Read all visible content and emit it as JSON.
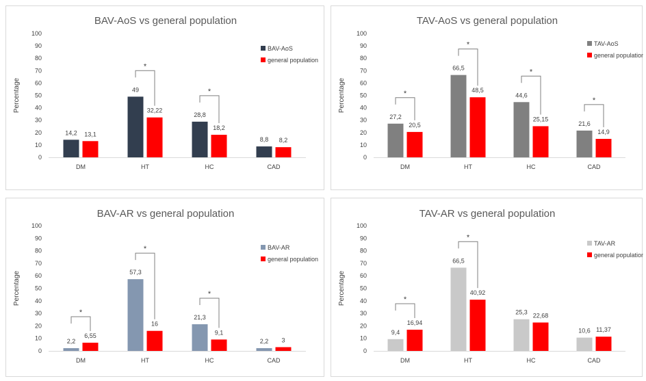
{
  "chart_data": [
    {
      "type": "bar",
      "title": "BAV-AoS vs general population",
      "ylabel": "Percentage",
      "ylim": [
        0,
        100
      ],
      "yticks": [
        "0",
        "10",
        "20",
        "30",
        "40",
        "50",
        "60",
        "70",
        "80",
        "90",
        "100"
      ],
      "categories": [
        "DM",
        "HT",
        "HC",
        "CAD"
      ],
      "series": [
        {
          "name": "BAV-AoS",
          "color": "#323E4F",
          "values": [
            14.2,
            49,
            28.8,
            8.8
          ],
          "labels": [
            "14,2",
            "49",
            "28,8",
            "8,8"
          ]
        },
        {
          "name": "general population",
          "color": "#FF0000",
          "values": [
            13.1,
            32.22,
            18.2,
            8.2
          ],
          "labels": [
            "13,1",
            "32,22",
            "18,2",
            "8,2"
          ]
        }
      ],
      "significance": [
        {
          "category": "HT",
          "mark": "*"
        },
        {
          "category": "HC",
          "mark": "*"
        }
      ],
      "legend_position": "right"
    },
    {
      "type": "bar",
      "title": "TAV-AoS vs general population",
      "ylabel": "Percentage",
      "ylim": [
        0,
        100
      ],
      "yticks": [
        "0",
        "10",
        "20",
        "30",
        "40",
        "50",
        "60",
        "70",
        "80",
        "90",
        "100"
      ],
      "categories": [
        "DM",
        "HT",
        "HC",
        "CAD"
      ],
      "series": [
        {
          "name": "TAV-AoS",
          "color": "#808080",
          "values": [
            27.2,
            66.5,
            44.6,
            21.6
          ],
          "labels": [
            "27,2",
            "66,5",
            "44,6",
            "21,6"
          ]
        },
        {
          "name": "general population",
          "color": "#FF0000",
          "values": [
            20.5,
            48.5,
            25.15,
            14.9
          ],
          "labels": [
            "20,5",
            "48,5",
            "25,15",
            "14,9"
          ]
        }
      ],
      "significance": [
        {
          "category": "DM",
          "mark": "*"
        },
        {
          "category": "HT",
          "mark": "*"
        },
        {
          "category": "HC",
          "mark": "*"
        },
        {
          "category": "CAD",
          "mark": "*"
        }
      ],
      "legend_position": "right"
    },
    {
      "type": "bar",
      "title": "BAV-AR vs general population",
      "ylabel": "Percentage",
      "ylim": [
        0,
        100
      ],
      "yticks": [
        "0",
        "10",
        "20",
        "30",
        "40",
        "50",
        "60",
        "70",
        "80",
        "90",
        "100"
      ],
      "categories": [
        "DM",
        "HT",
        "HC",
        "CAD"
      ],
      "series": [
        {
          "name": "BAV-AR",
          "color": "#8497B0",
          "values": [
            2.2,
            57.3,
            21.3,
            2.2
          ],
          "labels": [
            "2,2",
            "57,3",
            "21,3",
            "2,2"
          ]
        },
        {
          "name": "general population",
          "color": "#FF0000",
          "values": [
            6.55,
            16,
            9.1,
            3
          ],
          "labels": [
            "6,55",
            "16",
            "9,1",
            "3"
          ]
        }
      ],
      "significance": [
        {
          "category": "DM",
          "mark": "*"
        },
        {
          "category": "HT",
          "mark": "*"
        },
        {
          "category": "HC",
          "mark": "*"
        }
      ],
      "legend_position": "right"
    },
    {
      "type": "bar",
      "title": "TAV-AR vs general population",
      "ylabel": "Percentage",
      "ylim": [
        0,
        100
      ],
      "yticks": [
        "0",
        "10",
        "20",
        "30",
        "40",
        "50",
        "60",
        "70",
        "80",
        "90",
        "100"
      ],
      "categories": [
        "DM",
        "HT",
        "HC",
        "CAD"
      ],
      "series": [
        {
          "name": "TAV-AR",
          "color": "#C9C9C9",
          "values": [
            9.4,
            66.5,
            25.3,
            10.6
          ],
          "labels": [
            "9,4",
            "66,5",
            "25,3",
            "10,6"
          ]
        },
        {
          "name": "general population",
          "color": "#FF0000",
          "values": [
            16.94,
            40.92,
            22.68,
            11.37
          ],
          "labels": [
            "16,94",
            "40,92",
            "22,68",
            "11,37"
          ]
        }
      ],
      "significance": [
        {
          "category": "DM",
          "mark": "*"
        },
        {
          "category": "HT",
          "mark": "*"
        }
      ],
      "legend_position": "right"
    }
  ]
}
